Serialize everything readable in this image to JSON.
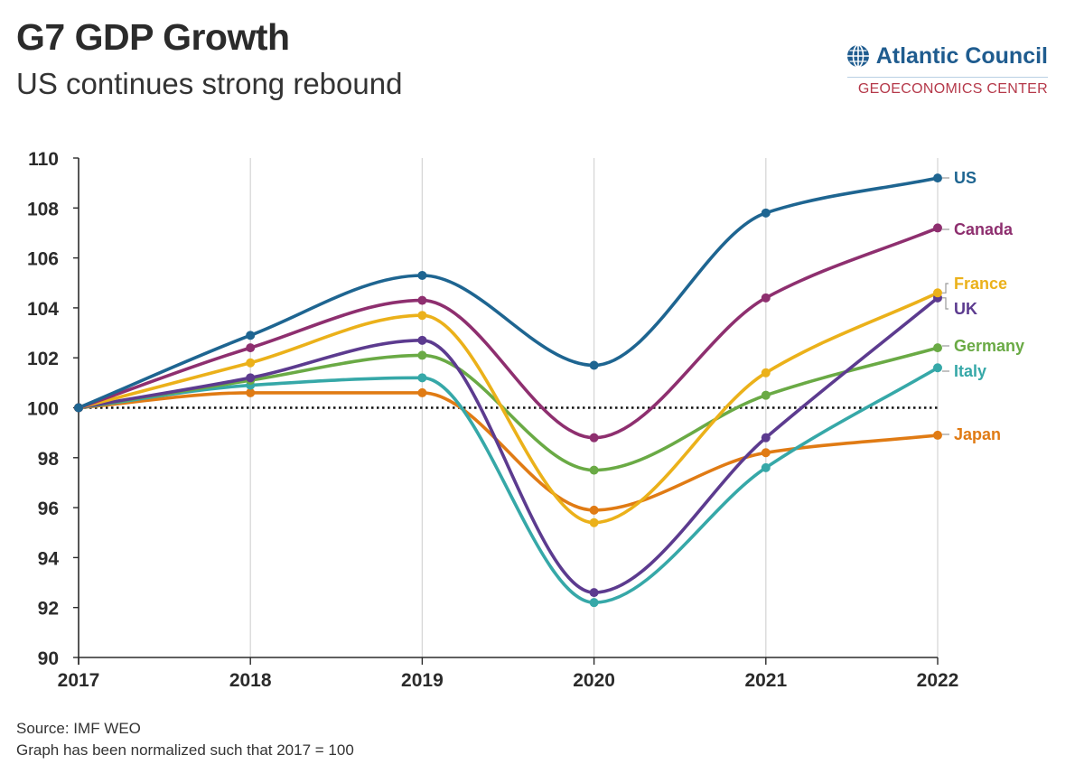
{
  "header": {
    "title": "G7 GDP Growth",
    "subtitle": "US continues strong rebound"
  },
  "brand": {
    "name": "Atlantic Council",
    "subline": "GEOECONOMICS CENTER",
    "icon": "globe-icon",
    "colors": {
      "name": "#1f5c8f",
      "subline": "#b5394a"
    }
  },
  "footer": {
    "source": "Source: IMF WEO",
    "note": "Graph has been normalized such that 2017 = 100"
  },
  "chart_data": {
    "type": "line",
    "title": "G7 GDP Growth",
    "subtitle": "US continues strong rebound",
    "xlabel": "",
    "ylabel": "",
    "x": [
      "2017",
      "2018",
      "2019",
      "2020",
      "2021",
      "2022"
    ],
    "ylim": [
      90,
      110
    ],
    "yticks": [
      90,
      92,
      94,
      96,
      98,
      100,
      102,
      104,
      106,
      108,
      110
    ],
    "grid": "vertical",
    "baseline": {
      "value": 100,
      "style": "dotted"
    },
    "legend": "direct-labels-right",
    "series": [
      {
        "name": "US",
        "color": "#1e6591",
        "values": [
          100,
          102.9,
          105.3,
          101.7,
          107.8,
          109.2
        ]
      },
      {
        "name": "Canada",
        "color": "#8e2f6f",
        "values": [
          100,
          102.4,
          104.3,
          98.8,
          104.4,
          107.2
        ]
      },
      {
        "name": "France",
        "color": "#ebb11a",
        "values": [
          100,
          101.8,
          103.7,
          95.4,
          101.4,
          104.6
        ]
      },
      {
        "name": "UK",
        "color": "#5c3b8f",
        "values": [
          100,
          101.2,
          102.7,
          92.6,
          98.8,
          104.4
        ]
      },
      {
        "name": "Germany",
        "color": "#6aaa45",
        "values": [
          100,
          101.1,
          102.1,
          97.5,
          100.5,
          102.4
        ]
      },
      {
        "name": "Italy",
        "color": "#36a8a8",
        "values": [
          100,
          100.9,
          101.2,
          92.2,
          97.6,
          101.6
        ]
      },
      {
        "name": "Japan",
        "color": "#e07b14",
        "values": [
          100,
          100.6,
          100.6,
          95.9,
          98.2,
          98.9
        ]
      }
    ]
  }
}
